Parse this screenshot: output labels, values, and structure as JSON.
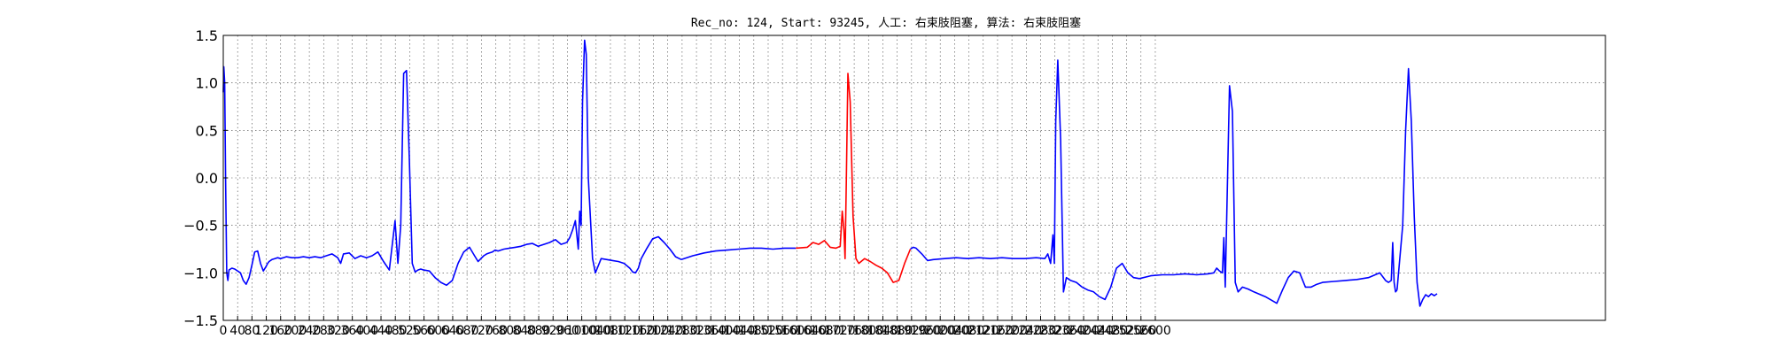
{
  "chart_data": {
    "type": "line",
    "title": "Rec_no: 124, Start: 93245, 人工: 右束肢阻塞, 算法: 右束肢阻塞",
    "xlabel": "",
    "ylabel": "",
    "xlim": [
      0,
      3000
    ],
    "ylim": [
      -1.5,
      1.5
    ],
    "grid": true,
    "yticks": [
      1.5,
      1.0,
      0.5,
      0.0,
      -0.5,
      -1.0,
      -1.5
    ],
    "ytick_labels": [
      "1.5",
      "1.0",
      "0.5",
      "0.0",
      "−0.5",
      "−1.0",
      "−1.5"
    ],
    "xticks": [
      0,
      40,
      80,
      120,
      160,
      200,
      240,
      280,
      320,
      360,
      400,
      440,
      480,
      520,
      560,
      600,
      640,
      680,
      720,
      760,
      800,
      840,
      880,
      920,
      960,
      1000,
      1040,
      1080,
      1120,
      1160,
      1200,
      1240,
      1280,
      1320,
      1360,
      1400,
      1440,
      1480,
      1520,
      1560,
      1600,
      1640,
      1680,
      1720,
      1760,
      1800,
      1840,
      1880,
      1920,
      1960,
      2000,
      2040,
      2080,
      2120,
      2160,
      2200,
      2240,
      2280,
      2320,
      2360,
      2400,
      2440,
      2480,
      2520,
      2560,
      2600
    ],
    "colors": {
      "normal": "#0000ff",
      "highlight": "#ff0000"
    },
    "highlight_range": [
      1200,
      1600
    ],
    "series": [
      {
        "color": "#0000ff",
        "x": [
          0,
          2,
          5,
          8,
          12,
          16,
          20,
          30,
          40,
          50,
          60,
          70,
          80,
          90,
          100,
          110,
          120,
          130,
          140,
          150,
          155,
          160,
          170,
          180,
          190,
          200,
          210,
          220,
          240,
          260,
          280,
          300,
          320,
          340,
          360,
          380,
          400,
          410,
          420,
          440,
          460,
          480,
          500,
          520,
          540,
          560,
          580,
          600,
          610,
          620,
          630,
          640,
          650,
          660,
          670,
          680,
          690,
          700,
          720,
          740,
          760,
          780,
          800,
          820,
          840,
          860,
          880,
          890,
          900,
          910,
          920,
          930,
          940,
          950,
          960,
          980,
          1000,
          1020,
          1040,
          1060,
          1080,
          1100,
          1120,
          1140,
          1160,
          1180,
          1200
        ],
        "y": [
          0.9,
          1.17,
          1.0,
          0.0,
          -1.0,
          -1.08,
          -0.97,
          -0.95,
          -0.96,
          -0.98,
          -1.0,
          -1.08,
          -1.12,
          -1.05,
          -0.92,
          -0.78,
          -0.77,
          -0.9,
          -0.98,
          -0.93,
          -0.9,
          -0.88,
          -0.86,
          -0.85,
          -0.84,
          -0.85,
          -0.84,
          -0.83,
          -0.84,
          -0.84,
          -0.83,
          -0.84,
          -0.83,
          -0.84,
          -0.82,
          -0.8,
          -0.84,
          -0.9,
          -0.8,
          -0.79,
          -0.85,
          -0.82,
          -0.84,
          -0.82,
          -0.78,
          -0.88,
          -0.97,
          -0.45,
          -0.9,
          -0.5,
          1.1,
          1.13,
          0.2,
          -0.9,
          -0.99,
          -0.97,
          -0.96,
          -0.97,
          -0.98,
          -1.05,
          -1.1,
          -1.13,
          -1.08,
          -0.9,
          -0.78,
          -0.73,
          -0.83,
          -0.88,
          -0.85,
          -0.82,
          -0.8,
          -0.79,
          -0.78,
          -0.76,
          -0.77,
          -0.75,
          -0.74,
          -0.73,
          -0.72,
          -0.7,
          -0.69,
          -0.72,
          -0.7,
          -0.68,
          -0.65,
          -0.7,
          -0.68
        ]
      },
      {
        "color": "#0000ff",
        "x": [
          1200,
          1210,
          1220,
          1230,
          1240,
          1245,
          1250,
          1255,
          1262,
          1268,
          1275,
          1290,
          1300,
          1320,
          1340,
          1360,
          1380,
          1400,
          1420,
          1430,
          1440,
          1450,
          1460,
          1480,
          1500,
          1520,
          1540,
          1560,
          1580,
          1600
        ],
        "y": [
          -0.68,
          -0.63,
          -0.55,
          -0.45,
          -0.75,
          -0.35,
          -0.5,
          0.8,
          1.45,
          1.3,
          0.0,
          -0.85,
          -1.0,
          -0.85,
          -0.86,
          -0.87,
          -0.88,
          -0.9,
          -0.95,
          -0.99,
          -1.0,
          -0.95,
          -0.85,
          -0.74,
          -0.64,
          -0.62,
          -0.68,
          -0.75,
          -0.83,
          -0.86
        ]
      },
      {
        "color": "#0000ff",
        "x": [
          1600,
          1640,
          1680,
          1720,
          1760,
          1800,
          1840,
          1880,
          1920,
          1960,
          2000
        ],
        "y": [
          -0.86,
          -0.82,
          -0.79,
          -0.77,
          -0.76,
          -0.75,
          -0.74,
          -0.74,
          -0.75,
          -0.74,
          -0.74
        ]
      },
      {
        "color": "#ff0000",
        "x": [
          2000,
          2040,
          2060,
          2080,
          2100,
          2120,
          2140,
          2155,
          2162,
          2168,
          2172,
          2176,
          2182,
          2190,
          2200,
          2210,
          2220,
          2240,
          2260,
          2280,
          2300,
          2320,
          2340,
          2360,
          2380,
          2400
        ],
        "y": [
          -0.74,
          -0.73,
          -0.68,
          -0.7,
          -0.66,
          -0.73,
          -0.74,
          -0.72,
          -0.35,
          -0.55,
          -0.85,
          -0.1,
          1.1,
          0.8,
          -0.4,
          -0.85,
          -0.9,
          -0.85,
          -0.88,
          -0.92,
          -0.95,
          -1.0,
          -1.1,
          -1.08,
          -0.9,
          -0.75
        ]
      },
      {
        "color": "#0000ff",
        "x": [
          2400,
          2410,
          2420,
          2440,
          2460,
          2480,
          2520,
          2560,
          2600,
          2640,
          2680,
          2720,
          2760,
          2800,
          2840,
          2870,
          2880,
          2890,
          2898,
          2903,
          2908,
          2915,
          2925,
          2935,
          2945,
          2960,
          2980,
          3000
        ],
        "y": [
          -0.75,
          -0.73,
          -0.74,
          -0.8,
          -0.87,
          -0.86,
          -0.85,
          -0.84,
          -0.85,
          -0.84,
          -0.85,
          -0.84,
          -0.85,
          -0.85,
          -0.84,
          -0.85,
          -0.8,
          -0.9,
          -0.6,
          -0.9,
          0.6,
          1.24,
          0.4,
          -1.2,
          -1.05,
          -1.08,
          -1.1,
          -1.15
        ]
      },
      {
        "color": "#0000ff",
        "x": [
          3000,
          3020,
          3040,
          3060,
          3080,
          3100,
          3120,
          3140,
          3160,
          3180,
          3200,
          3240,
          3280,
          3320,
          3360,
          3400,
          3440,
          3460,
          3470,
          3480,
          3490,
          3495,
          3500,
          3508,
          3515,
          3525,
          3535,
          3545,
          3560,
          3580,
          3600,
          3640,
          3680,
          3700,
          3720,
          3740,
          3760,
          3780,
          3800,
          3820,
          3840,
          3880,
          3920,
          3960,
          4000,
          4040,
          4060,
          4070,
          4080,
          4085,
          4090,
          4095,
          4100
        ],
        "y": [
          -1.15,
          -1.18,
          -1.2,
          -1.25,
          -1.28,
          -1.15,
          -0.95,
          -0.9,
          -1.0,
          -1.05,
          -1.06,
          -1.03,
          -1.02,
          -1.02,
          -1.01,
          -1.02,
          -1.01,
          -1.0,
          -0.95,
          -0.98,
          -1.0,
          -0.63,
          -1.15,
          0.0,
          0.97,
          0.7,
          -1.1,
          -1.2,
          -1.15,
          -1.17,
          -1.2,
          -1.25,
          -1.32,
          -1.18,
          -1.05,
          -0.98,
          -1.0,
          -1.15,
          -1.15,
          -1.12,
          -1.1,
          -1.09,
          -1.08,
          -1.07,
          -1.05,
          -1.0,
          -1.08,
          -1.1,
          -1.08,
          -0.68,
          -1.1,
          -1.2,
          -1.18
        ]
      },
      {
        "color": "#0000ff",
        "x": [
          4100,
          4120,
          4130,
          4140,
          4150,
          4160,
          4170,
          4180,
          4190,
          4200,
          4210,
          4220,
          4230,
          4240
        ],
        "y": [
          -1.18,
          -0.5,
          0.5,
          1.15,
          0.6,
          -0.4,
          -1.1,
          -1.35,
          -1.28,
          -1.23,
          -1.25,
          -1.22,
          -1.24,
          -1.22
        ]
      }
    ]
  }
}
